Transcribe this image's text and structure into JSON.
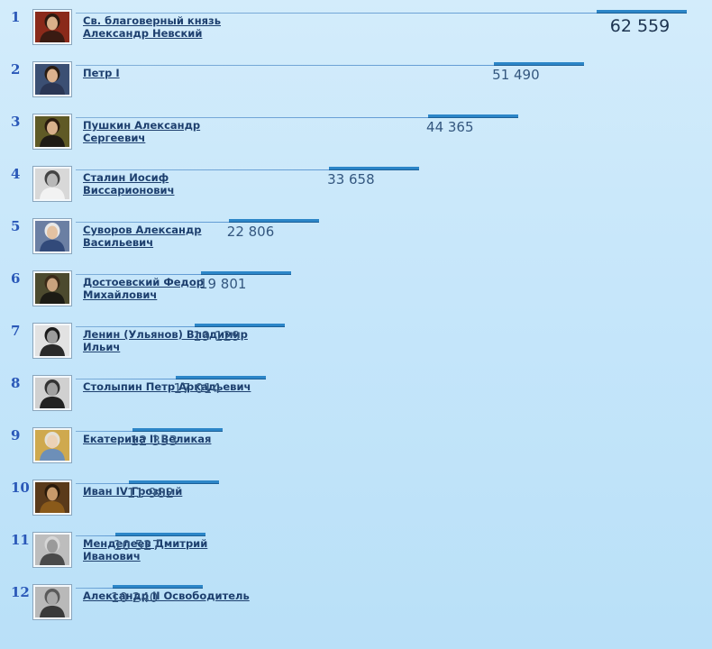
{
  "chart_data": {
    "type": "bar",
    "orientation": "horizontal-ranking",
    "xlim": [
      0,
      62559
    ],
    "rows": [
      {
        "rank": "1",
        "name": "Св. благоверный князь Александр Невский",
        "value": 62559,
        "value_label": "62 559",
        "portrait": {
          "bg": "#8a2a1a",
          "face": "#d9b08a",
          "cloth": "#3a1b12",
          "hair": "#2b1a10"
        }
      },
      {
        "rank": "2",
        "name": "Петр I",
        "value": 51490,
        "value_label": "51 490",
        "portrait": {
          "bg": "#3b4f73",
          "face": "#dcb28e",
          "cloth": "#2a3654",
          "hair": "#2a1c12"
        }
      },
      {
        "rank": "3",
        "name": "Пушкин Александр Сергеевич",
        "value": 44365,
        "value_label": "44 365",
        "portrait": {
          "bg": "#5f5a26",
          "face": "#d8b08c",
          "cloth": "#1e1a14",
          "hair": "#2a1a0e"
        }
      },
      {
        "rank": "4",
        "name": "Сталин Иосиф Виссарионович",
        "value": 33658,
        "value_label": "33 658",
        "portrait": {
          "bg": "#d8d8d8",
          "face": "#b8b8b8",
          "cloth": "#f2f2f2",
          "hair": "#444444"
        }
      },
      {
        "rank": "5",
        "name": "Суворов Александр Васильевич",
        "value": 22806,
        "value_label": "22 806",
        "portrait": {
          "bg": "#6b7fa3",
          "face": "#e3c2a2",
          "cloth": "#324a7a",
          "hair": "#e8e8e8"
        }
      },
      {
        "rank": "6",
        "name": "Достоевский Федор Михайлович",
        "value": 19801,
        "value_label": "19 801",
        "portrait": {
          "bg": "#4c4a2e",
          "face": "#c9a27e",
          "cloth": "#1c1b14",
          "hair": "#3a2a18"
        }
      },
      {
        "rank": "7",
        "name": "Ленин (Ульянов) Владимир Ильич",
        "value": 19129,
        "value_label": "19 129",
        "portrait": {
          "bg": "#e2e2e2",
          "face": "#9c9c9c",
          "cloth": "#2a2a2a",
          "hair": "#1c1c1c"
        }
      },
      {
        "rank": "8",
        "name": "Столыпин Петр Аркадьевич",
        "value": 17014,
        "value_label": "17 014",
        "portrait": {
          "bg": "#d0d0d0",
          "face": "#a0a0a0",
          "cloth": "#222222",
          "hair": "#333333"
        }
      },
      {
        "rank": "9",
        "name": "Екатерина II Великая",
        "value": 12353,
        "value_label": "12 353",
        "portrait": {
          "bg": "#cfa94e",
          "face": "#ecd2b6",
          "cloth": "#6d8fb8",
          "hair": "#e4e0d6"
        }
      },
      {
        "rank": "10",
        "name": "Иван IV Грозный",
        "value": 11982,
        "value_label": "11 982",
        "portrait": {
          "bg": "#5a3a1a",
          "face": "#c89a6a",
          "cloth": "#8a5a1a",
          "hair": "#2a1a0a"
        }
      },
      {
        "rank": "11",
        "name": "Менделеев Дмитрий Иванович",
        "value": 10527,
        "value_label": "10 527",
        "portrait": {
          "bg": "#bdbdbd",
          "face": "#9a9a9a",
          "cloth": "#4a4a4a",
          "hair": "#d6d6d6"
        }
      },
      {
        "rank": "12",
        "name": "Александр II Освободитель",
        "value": 10240,
        "value_label": "10 240",
        "portrait": {
          "bg": "#b9b9b9",
          "face": "#a8a8a8",
          "cloth": "#3a3a3a",
          "hair": "#5a5a5a"
        }
      }
    ]
  },
  "colors": {
    "bar": "#2c86c8",
    "rank": "#2a58b8",
    "name_link": "#1d3f6e",
    "value": "#34577f",
    "top_value": "#1d3450"
  }
}
